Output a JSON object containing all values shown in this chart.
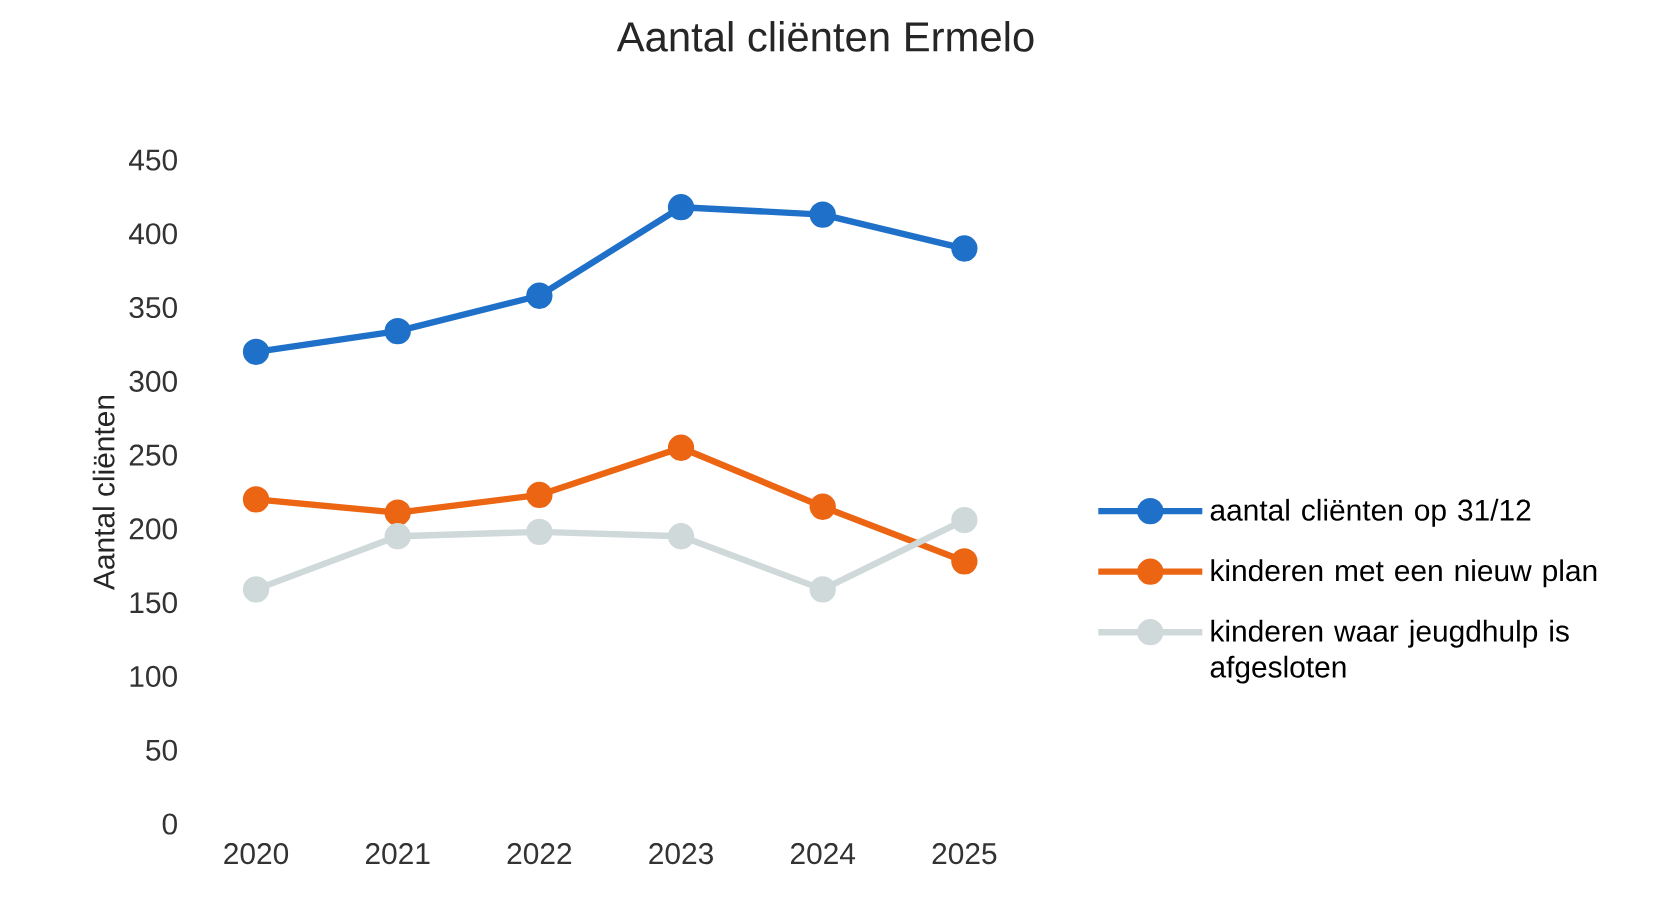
{
  "chart_data": {
    "type": "line",
    "title": "Aantal cliënten Ermelo",
    "ylabel": "Aantal cliënten",
    "categories": [
      "2020",
      "2021",
      "2022",
      "2023",
      "2024",
      "2025"
    ],
    "series": [
      {
        "name": "aantal cliënten op 31/12",
        "color": "#1f70c8",
        "values": [
          320,
          334,
          358,
          418,
          413,
          390
        ]
      },
      {
        "name": "kinderen met een nieuw plan",
        "color": "#ec6513",
        "values": [
          220,
          211,
          223,
          255,
          215,
          178
        ]
      },
      {
        "name": "kinderen waar jeugdhulp is afgesloten",
        "color": "#cfd9da",
        "values": [
          159,
          195,
          198,
          195,
          159,
          206
        ]
      }
    ],
    "ylim": [
      0,
      450
    ],
    "yticks": [
      0,
      50,
      100,
      150,
      200,
      250,
      300,
      350,
      400,
      450
    ],
    "legend": "right",
    "marker": "circle",
    "line_style": "solid"
  }
}
